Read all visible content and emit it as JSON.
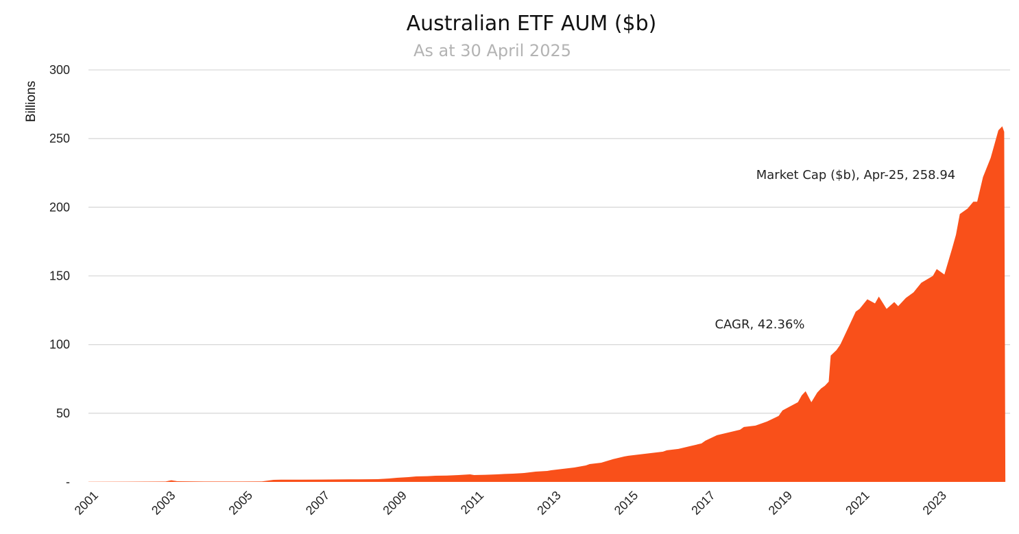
{
  "chart_data": {
    "type": "area",
    "title": "Australian ETF AUM ($b)",
    "subtitle": "As at 30 April 2025",
    "ylabel": "Billions",
    "xlabel": "",
    "ylim": [
      0,
      300
    ],
    "y_ticks": [
      {
        "value": 0,
        "label": "-"
      },
      {
        "value": 50,
        "label": "50"
      },
      {
        "value": 100,
        "label": "100"
      },
      {
        "value": 150,
        "label": "150"
      },
      {
        "value": 200,
        "label": "200"
      },
      {
        "value": 250,
        "label": "250"
      },
      {
        "value": 300,
        "label": "300"
      }
    ],
    "x_ticks": [
      "2001",
      "2003",
      "2005",
      "2007",
      "2009",
      "2011",
      "2013",
      "2015",
      "2017",
      "2019",
      "2021",
      "2023"
    ],
    "x_range": [
      2001.0,
      2024.85
    ],
    "grid": "horizontal",
    "fill_color": "#f9501a",
    "series": [
      {
        "name": "Market Cap ($b)",
        "x": [
          2001.0,
          2002.0,
          2003.0,
          2003.15,
          2003.3,
          2004.0,
          2005.0,
          2005.5,
          2005.8,
          2006.0,
          2006.5,
          2007.0,
          2007.5,
          2008.0,
          2008.5,
          2008.8,
          2009.0,
          2009.3,
          2009.5,
          2009.8,
          2010.0,
          2010.3,
          2010.6,
          2010.9,
          2011.0,
          2011.3,
          2011.6,
          2011.8,
          2012.0,
          2012.3,
          2012.6,
          2012.9,
          2013.0,
          2013.3,
          2013.6,
          2013.9,
          2014.0,
          2014.3,
          2014.6,
          2014.9,
          2015.0,
          2015.3,
          2015.6,
          2015.9,
          2016.0,
          2016.3,
          2016.6,
          2016.9,
          2017.0,
          2017.3,
          2017.6,
          2017.9,
          2018.0,
          2018.3,
          2018.6,
          2018.9,
          2019.0,
          2019.2,
          2019.4,
          2019.5,
          2019.6,
          2019.75,
          2019.9,
          2020.0,
          2020.1,
          2020.2,
          2020.25,
          2020.4,
          2020.5,
          2020.7,
          2020.9,
          2021.0,
          2021.2,
          2021.4,
          2021.5,
          2021.7,
          2021.9,
          2022.0,
          2022.2,
          2022.4,
          2022.6,
          2022.9,
          2023.0,
          2023.2,
          2023.4,
          2023.5,
          2023.6,
          2023.8,
          2023.95,
          2024.05,
          2024.2,
          2024.4,
          2024.5,
          2024.6,
          2024.7,
          2024.75,
          2024.78,
          2024.85
        ],
        "values": [
          0.1,
          0.2,
          0.3,
          1.2,
          0.5,
          0.3,
          0.3,
          0.4,
          1.5,
          1.6,
          1.6,
          1.7,
          1.8,
          1.9,
          2.0,
          2.5,
          3.0,
          3.5,
          4.0,
          4.2,
          4.5,
          4.6,
          5.0,
          5.5,
          5.0,
          5.2,
          5.5,
          5.8,
          6.0,
          6.5,
          7.5,
          8.0,
          8.5,
          9.5,
          10.5,
          12.0,
          13.0,
          14.0,
          16.5,
          18.5,
          19.0,
          20.0,
          21.0,
          22.0,
          23.0,
          24.0,
          26.0,
          28.0,
          30.0,
          34.0,
          36.0,
          38.0,
          40.0,
          41.0,
          44.0,
          48.0,
          52.0,
          55.0,
          58.0,
          63.0,
          66.0,
          58.0,
          65.0,
          68.0,
          70.0,
          73.0,
          92.0,
          96.0,
          100.0,
          112.0,
          124.0,
          126.0,
          133.0,
          130.0,
          135.0,
          126.0,
          131.0,
          128.0,
          134.0,
          138.0,
          145.0,
          150.0,
          155.0,
          151.0,
          170.0,
          180.0,
          195.0,
          199.0,
          204.0,
          204.0,
          222.0,
          236.0,
          246.0,
          256.0,
          258.94,
          255.0,
          0,
          0
        ]
      }
    ],
    "annotations": [
      {
        "text": "Market Cap ($b), Apr-25, 258.94"
      },
      {
        "text": "CAGR, 42.36%"
      }
    ]
  }
}
